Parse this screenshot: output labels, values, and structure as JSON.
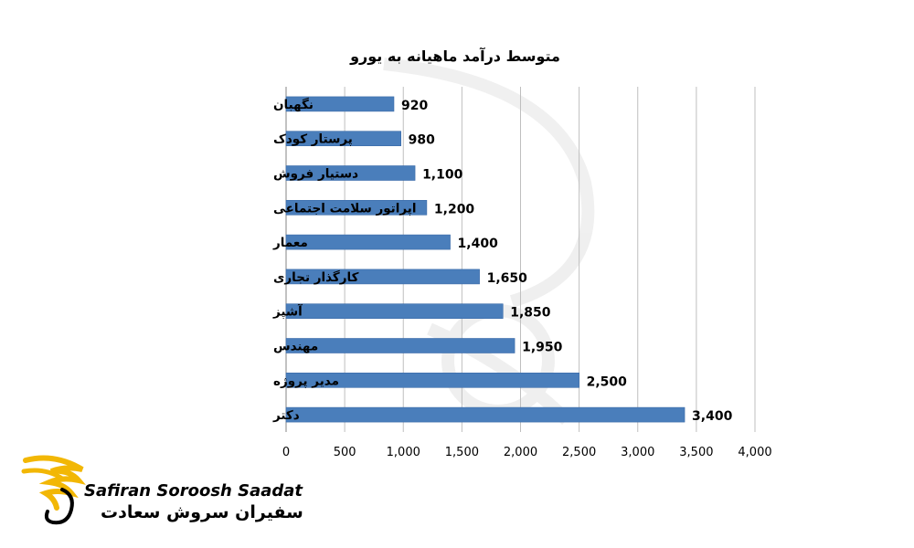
{
  "chart_data": {
    "type": "bar",
    "orientation": "horizontal",
    "title": "متوسط درآمد ماهیانه به یورو",
    "categories": [
      "نگهبان",
      "پرستار کودک",
      "دستیار فروش",
      "اپراتور سلامت اجتماعی",
      "معمار",
      "کارگذار تجاری",
      "آشپز",
      "مهندس",
      "مدیر پروژه",
      "دکتر"
    ],
    "values": [
      920,
      980,
      1100,
      1200,
      1400,
      1650,
      1850,
      1950,
      2500,
      3400
    ],
    "value_labels": [
      "920",
      "980",
      "1,100",
      "1,200",
      "1,400",
      "1,650",
      "1,850",
      "1,950",
      "2,500",
      "3,400"
    ],
    "xlim": [
      0,
      4000
    ],
    "x_ticks": [
      "0",
      "500",
      "1,000",
      "1,500",
      "2,000",
      "2,500",
      "3,000",
      "3,500",
      "4,000"
    ],
    "grid": "vertical",
    "bar_color": "#4a7ebb"
  },
  "logo": {
    "text_en": "Safiran Soroosh Saadat",
    "text_fa": "سفیران سروش سعادت",
    "accent_color": "#f2b705"
  }
}
